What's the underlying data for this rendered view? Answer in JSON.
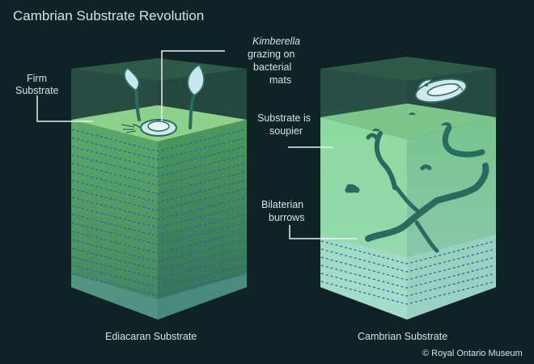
{
  "title": "Cambrian Substrate Revolution",
  "labels": {
    "firm_substrate": [
      "Firm",
      "Substrate"
    ],
    "kimberella": {
      "name": "Kimberella",
      "rest": [
        "grazing on",
        "bacterial",
        "mats"
      ]
    },
    "soupier": [
      "Substrate is",
      "soupier"
    ],
    "burrows": [
      "Bilaterian",
      "burrows"
    ]
  },
  "captions": {
    "left": "Ediacaran Substrate",
    "right": "Cambrian Substrate"
  },
  "credit": "© Royal Ontario Museum",
  "colors": {
    "background": "#0f2226",
    "text": "#cfe6e4",
    "leader_line": "#e8f2f1",
    "water_top": "#2f5a4b",
    "ediacaran_top": "#8fd08a",
    "ediacaran_front": "#4f9e63",
    "cambrian_front": "#8ed7a3",
    "burrow": "#2b6a5e",
    "dashed_layer": "#2a59b8"
  }
}
